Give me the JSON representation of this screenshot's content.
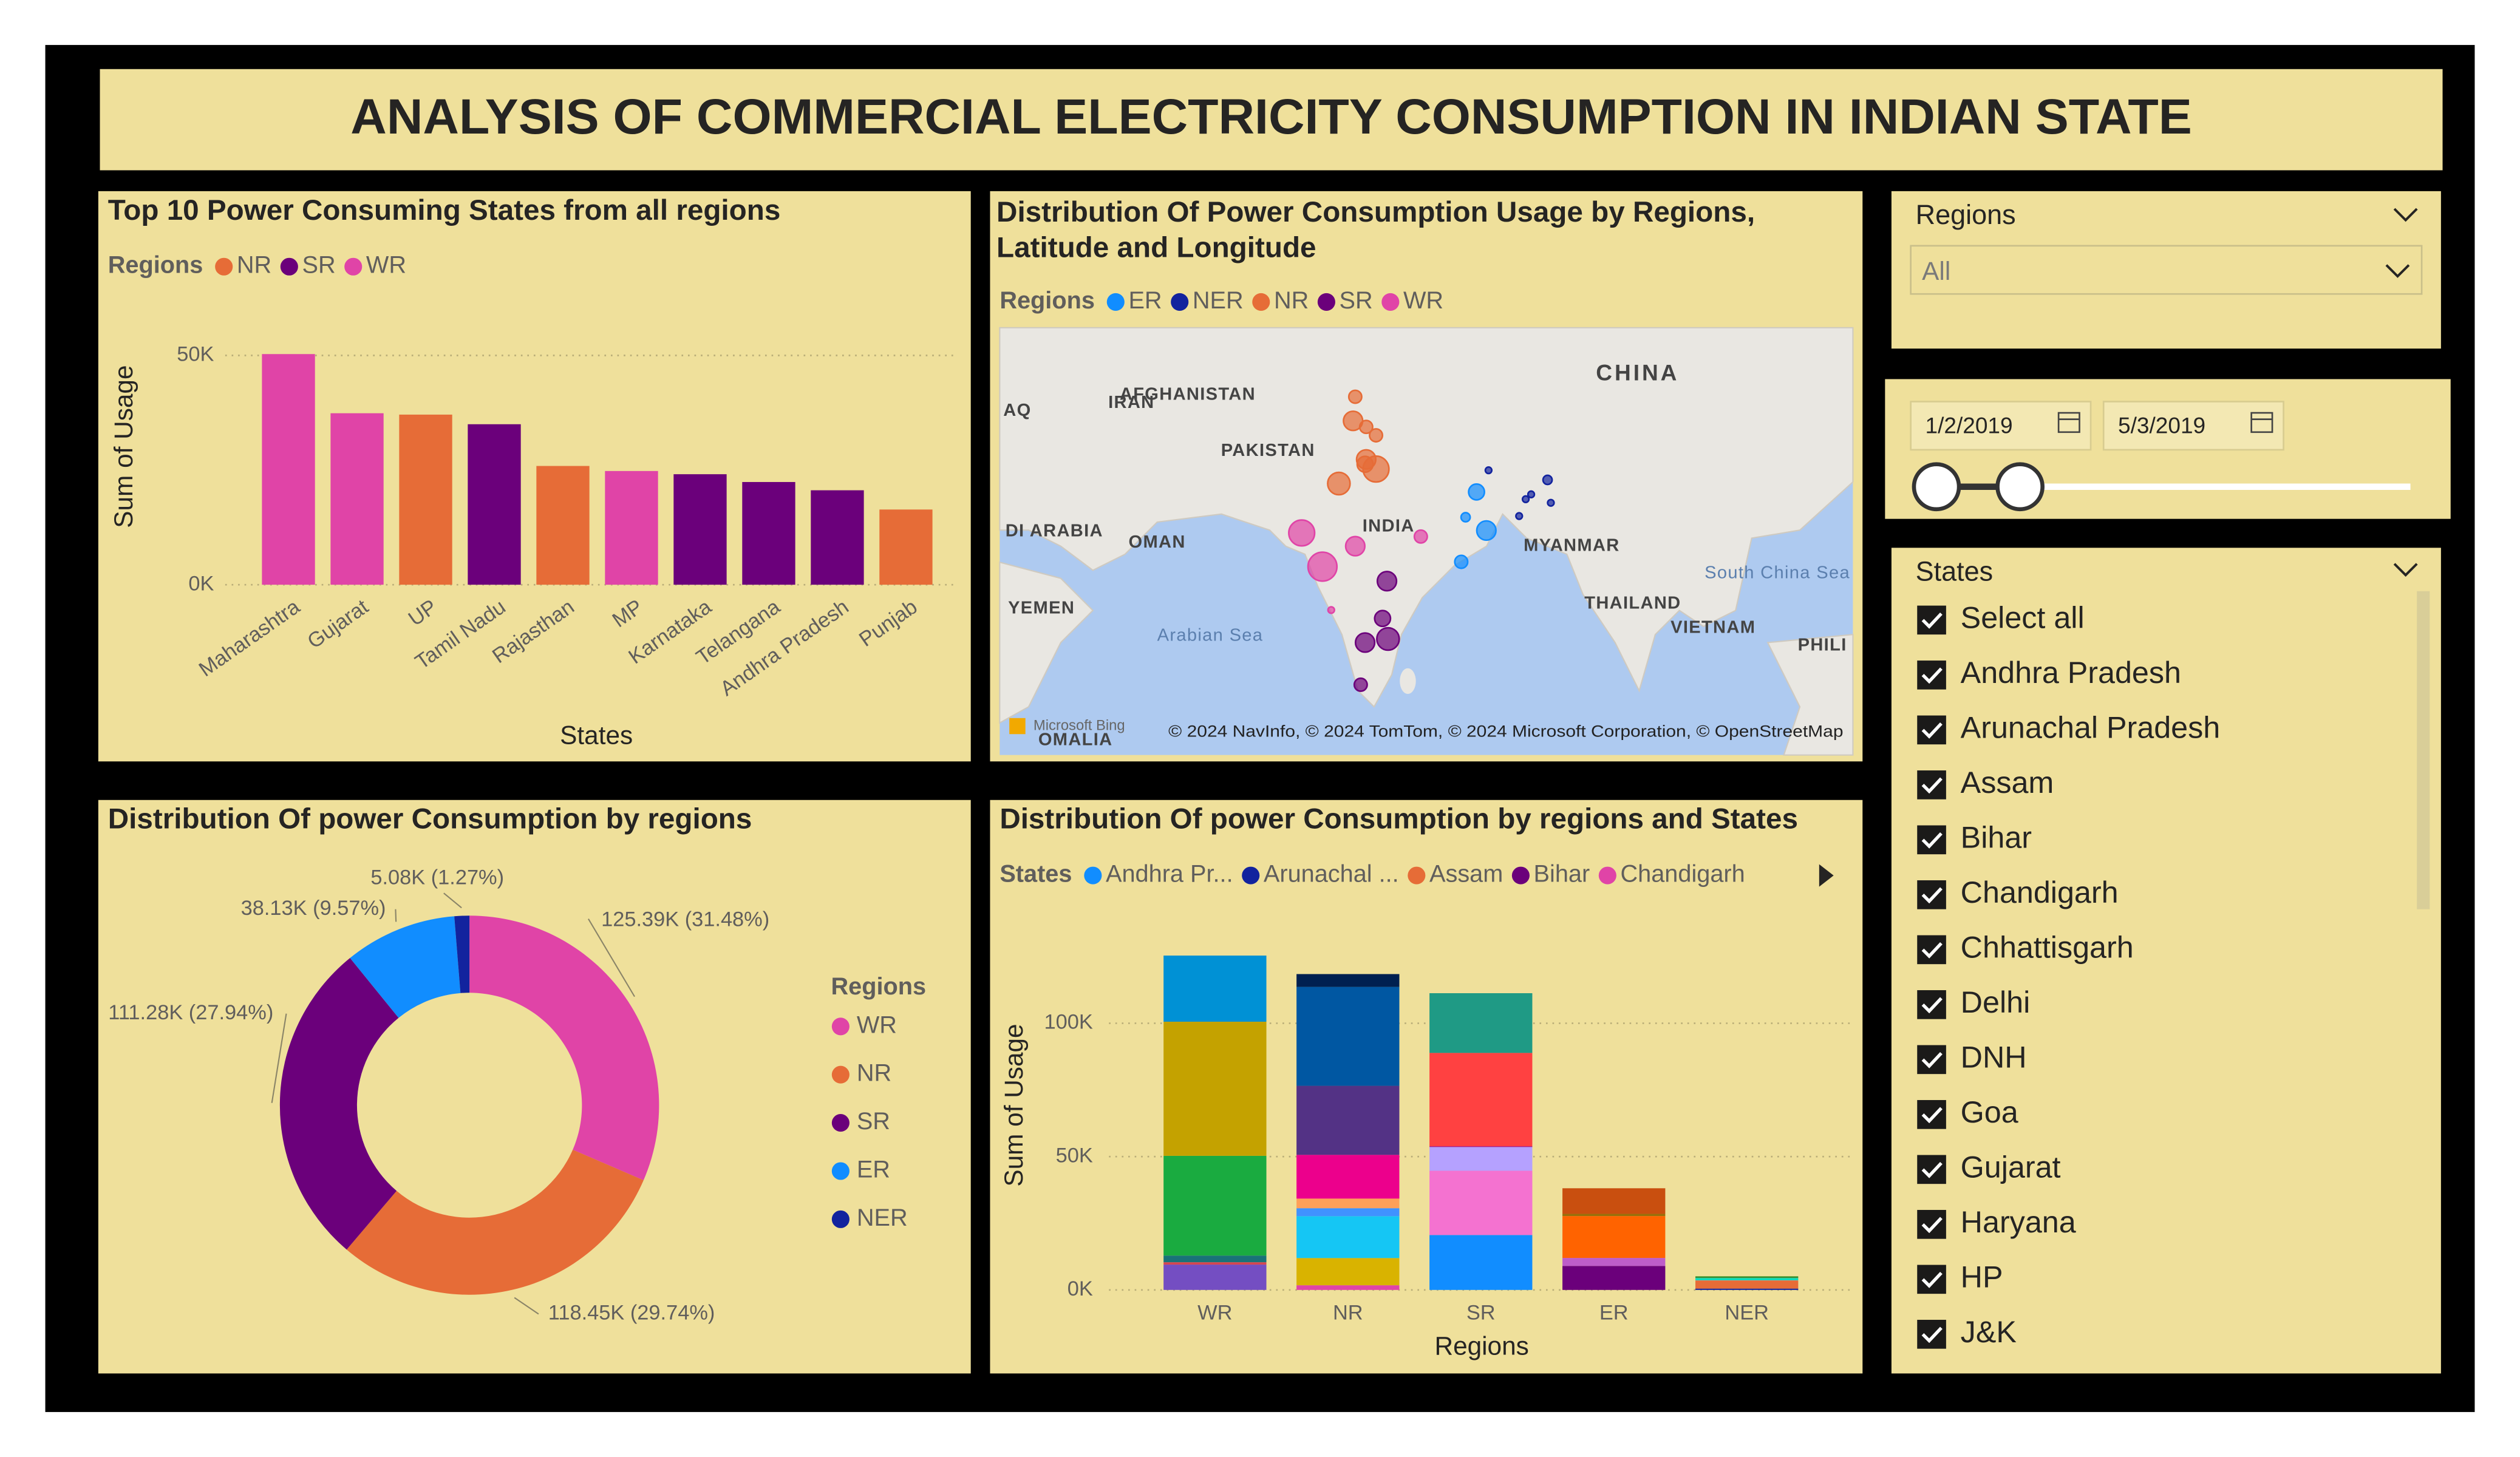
{
  "header": {
    "title": "ANALYSIS OF COMMERCIAL ELECTRICITY CONSUMPTION IN INDIAN STATE"
  },
  "chart_data": [
    {
      "type": "bar",
      "title": "Top 10 Power Consuming States from all regions",
      "legend_title": "Regions",
      "categories": [
        "Maharashtra",
        "Gujarat",
        "UP",
        "Tamil Nadu",
        "Rajasthan",
        "MP",
        "Karnataka",
        "Telangana",
        "Andhra Pradesh",
        "Punjab"
      ],
      "series": [
        {
          "name": "NR",
          "color": "#E66C37",
          "values": [
            null,
            null,
            37100,
            null,
            25900,
            null,
            null,
            null,
            null,
            16400
          ]
        },
        {
          "name": "SR",
          "color": "#6B007B",
          "values": [
            null,
            null,
            null,
            35000,
            null,
            null,
            24100,
            22400,
            20600,
            null
          ]
        },
        {
          "name": "WR",
          "color": "#E044A7",
          "values": [
            50300,
            37400,
            null,
            null,
            null,
            24800,
            null,
            null,
            null,
            null
          ]
        }
      ],
      "xlabel": "States",
      "ylabel": "Sum of Usage",
      "ylim": [
        0,
        55000
      ],
      "yticks": [
        {
          "value": 0,
          "label": "0K"
        },
        {
          "value": 50000,
          "label": "50K"
        }
      ],
      "grid": true
    },
    {
      "type": "map",
      "title": "Distribution Of Power Consumption Usage by Regions, Latitude and Longitude",
      "legend_title": "Regions",
      "series": [
        {
          "name": "ER",
          "color": "#118DFF",
          "x": [
            87.2,
            88.1,
            85.8,
            86.2
          ],
          "y": [
            24.9,
            21.7,
            19.1,
            22.8
          ],
          "sizes": [
            15000,
            22000,
            10000,
            5000
          ]
        },
        {
          "name": "NER",
          "color": "#12239E",
          "x": [
            93.7,
            92.2,
            94.0,
            91.1,
            91.7,
            88.3
          ],
          "y": [
            25.9,
            24.7,
            24.0,
            22.9,
            24.3,
            26.7
          ],
          "sizes": [
            5000,
            2500,
            2500,
            2500,
            2500,
            2500
          ]
        },
        {
          "name": "NR",
          "color": "#E66C37",
          "x": [
            76.1,
            75.9,
            77.1,
            78.0,
            77.1,
            78.0,
            74.6,
            77.0
          ],
          "y": [
            32.8,
            30.8,
            30.3,
            29.6,
            27.6,
            26.8,
            25.6,
            27.2
          ],
          "sizes": [
            10000,
            22000,
            10000,
            10000,
            22000,
            40000,
            30000,
            15000
          ]
        },
        {
          "name": "SR",
          "color": "#6B007B",
          "x": [
            79.0,
            78.6,
            77.0,
            79.1,
            76.6
          ],
          "y": [
            17.5,
            14.4,
            12.4,
            12.7,
            8.9
          ],
          "sizes": [
            22000,
            15000,
            22000,
            30000,
            10000
          ]
        },
        {
          "name": "WR",
          "color": "#E044A7",
          "x": [
            71.2,
            73.1,
            76.1,
            82.1,
            73.9
          ],
          "y": [
            21.5,
            18.7,
            20.4,
            21.2,
            15.1
          ],
          "sizes": [
            40000,
            50000,
            22000,
            10000,
            2500
          ]
        }
      ],
      "labels": [
        "CHINA",
        "IRAN",
        "AFGHANISTAN",
        "PAKISTAN",
        "INDIA",
        "OMAN",
        "MYANMAR",
        "THAILAND",
        "VIETNAM",
        "YEMEN",
        "DI ARABIA",
        "AQ",
        "PHILI",
        "Arabian Sea",
        "South China Sea",
        "OMALIA"
      ],
      "credit": "Microsoft Bing",
      "attribution": "© 2024 NavInfo, © 2024 TomTom, © 2024 Microsoft Corporation, © OpenStreetMap"
    },
    {
      "type": "pie",
      "title": "Distribution Of power Consumption by regions",
      "legend_title": "Regions",
      "categories": [
        "WR",
        "NR",
        "SR",
        "ER",
        "NER"
      ],
      "values": [
        125390,
        118450,
        111280,
        38130,
        5080
      ],
      "value_labels": [
        "125.39K (31.48%)",
        "118.45K (29.74%)",
        "111.28K (27.94%)",
        "38.13K (9.57%)",
        "5.08K (1.27%)"
      ],
      "colors": [
        "#E044A7",
        "#E66C37",
        "#6B007B",
        "#118DFF",
        "#12239E"
      ]
    },
    {
      "type": "stacked_bar",
      "title": "Distribution Of power Consumption by regions and States",
      "legend_title": "States",
      "categories": [
        "WR",
        "NR",
        "SR",
        "ER",
        "NER"
      ],
      "series": [
        {
          "name": "Andhra Pr...",
          "color": "#118DFF",
          "values": [
            null,
            null,
            20600,
            null,
            null
          ]
        },
        {
          "name": "Arunachal ...",
          "color": "#12239E",
          "values": [
            null,
            null,
            null,
            null,
            500
          ]
        },
        {
          "name": "Assam",
          "color": "#E66C37",
          "values": [
            null,
            null,
            null,
            null,
            3000
          ]
        },
        {
          "name": "Bihar",
          "color": "#6B007B",
          "values": [
            null,
            null,
            null,
            9000,
            null
          ]
        },
        {
          "name": "Chandigarh",
          "color": "#E044A7",
          "values": [
            null,
            1750,
            null,
            null,
            null
          ]
        },
        {
          "color": "#744EC2",
          "values": [
            9500,
            null,
            null,
            null,
            null
          ]
        },
        {
          "color": "#D9B300",
          "values": [
            null,
            10200,
            null,
            null,
            null
          ]
        },
        {
          "color": "#D64550",
          "values": [
            890,
            null,
            null,
            null,
            null
          ]
        },
        {
          "color": "#197278",
          "values": [
            2500,
            null,
            null,
            null,
            null
          ]
        },
        {
          "color": "#1AAB40",
          "values": [
            37400,
            null,
            null,
            null,
            null
          ]
        },
        {
          "color": "#15C6F4",
          "values": [
            null,
            15700,
            null,
            null,
            null
          ]
        },
        {
          "color": "#4092FF",
          "values": [
            null,
            3000,
            null,
            null,
            null
          ]
        },
        {
          "color": "#FFA058",
          "values": [
            null,
            3600,
            null,
            null,
            null
          ]
        },
        {
          "color": "#BE5DC9",
          "values": [
            null,
            null,
            null,
            3000,
            null
          ]
        },
        {
          "color": "#F472D0",
          "values": [
            null,
            null,
            24100,
            null,
            null
          ]
        },
        {
          "color": "#B5A1FF",
          "values": [
            null,
            null,
            8900,
            null,
            null
          ]
        },
        {
          "color": "#C4A200",
          "values": [
            50300,
            null,
            null,
            null,
            null
          ]
        },
        {
          "color": "#FF8080",
          "values": [
            null,
            null,
            null,
            null,
            100
          ]
        },
        {
          "color": "#00DBBC",
          "values": [
            null,
            null,
            null,
            null,
            800
          ]
        },
        {
          "color": "#5BD667",
          "values": [
            null,
            null,
            null,
            null,
            100
          ]
        },
        {
          "color": "#0091D5",
          "values": [
            24800,
            null,
            null,
            null,
            null
          ]
        },
        {
          "color": "#4668C5",
          "values": [
            null,
            null,
            null,
            null,
            80
          ]
        },
        {
          "color": "#FF6300",
          "values": [
            null,
            null,
            null,
            15700,
            null
          ]
        },
        {
          "color": "#99008A",
          "values": [
            null,
            null,
            280,
            null,
            null
          ]
        },
        {
          "color": "#EC008C",
          "values": [
            null,
            16400,
            null,
            null,
            null
          ]
        },
        {
          "color": "#533285",
          "values": [
            null,
            25900,
            null,
            null,
            null
          ]
        },
        {
          "color": "#99700A",
          "values": [
            null,
            null,
            null,
            830,
            null
          ]
        },
        {
          "color": "#FF4141",
          "values": [
            null,
            null,
            35000,
            null,
            null
          ]
        },
        {
          "color": "#1F9A85",
          "values": [
            null,
            null,
            22400,
            null,
            null
          ]
        },
        {
          "color": "#25891C",
          "values": [
            null,
            null,
            null,
            null,
            500
          ]
        },
        {
          "color": "#0057A2",
          "values": [
            null,
            37100,
            null,
            null,
            null
          ]
        },
        {
          "color": "#002050",
          "values": [
            null,
            4800,
            null,
            null,
            null
          ]
        },
        {
          "color": "#C94F0F",
          "values": [
            null,
            null,
            null,
            9600,
            null
          ]
        }
      ],
      "xlabel": "Regions",
      "ylabel": "Sum of Usage",
      "ylim": [
        0,
        130000
      ],
      "yticks": [
        {
          "value": 0,
          "label": "0K"
        },
        {
          "value": 50000,
          "label": "50K"
        },
        {
          "value": 100000,
          "label": "100K"
        }
      ],
      "grid": true
    }
  ],
  "slicers": {
    "regions": {
      "title": "Regions",
      "value": "All"
    },
    "dates": {
      "start": "1/2/2019",
      "end": "5/3/2019"
    },
    "states": {
      "title": "States",
      "items": [
        "Select all",
        "Andhra Pradesh",
        "Arunachal Pradesh",
        "Assam",
        "Bihar",
        "Chandigarh",
        "Chhattisgarh",
        "Delhi",
        "DNH",
        "Goa",
        "Gujarat",
        "Haryana",
        "HP",
        "J&K"
      ]
    }
  }
}
